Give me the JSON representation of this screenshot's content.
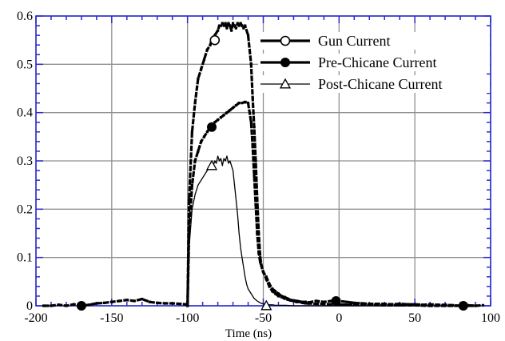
{
  "chart_data": {
    "type": "line",
    "title": "",
    "xlabel": "Time (ns)",
    "ylabel": "",
    "xlim": [
      -200,
      100
    ],
    "ylim": [
      0,
      0.6
    ],
    "x_ticks": [
      -200,
      -150,
      -100,
      -50,
      0,
      50,
      100
    ],
    "x_tick_labels": [
      "-200",
      "-150",
      "-100",
      "-50",
      "0",
      "50",
      "100"
    ],
    "y_ticks": [
      0,
      0.1,
      0.2,
      0.3,
      0.4,
      0.5,
      0.6
    ],
    "y_tick_labels": [
      "0",
      "0.1",
      "0.2",
      "0.3",
      "0.4",
      "0.5",
      "0.6"
    ],
    "grid": true,
    "legend_position": "top-right",
    "series": [
      {
        "name": "Gun Current",
        "marker": "open-circle",
        "line_weight": "heavy",
        "marker_points": [
          [
            -82,
            0.55
          ]
        ],
        "x": [
          -100,
          -99,
          -97,
          -95,
          -93,
          -91,
          -89,
          -87,
          -85,
          -84,
          -83,
          -82,
          -80,
          -79,
          -78,
          -77,
          -76,
          -75,
          -74,
          -73,
          -72,
          -71,
          -70,
          -69,
          -68,
          -67,
          -66,
          -65,
          -64,
          -63,
          -62,
          -60,
          -58,
          -57,
          -56,
          -55,
          -54,
          -53,
          -52,
          -51,
          -50,
          -48,
          -46,
          -44,
          -42,
          -40,
          -38,
          -36,
          -34,
          -32,
          -30,
          -28,
          -26,
          -24,
          -22,
          -20,
          -15,
          -10,
          -5,
          0,
          5,
          10,
          20,
          30,
          40,
          50,
          60,
          70,
          80,
          90
        ],
        "y": [
          0.0,
          0.22,
          0.36,
          0.42,
          0.47,
          0.49,
          0.51,
          0.53,
          0.54,
          0.55,
          0.55,
          0.56,
          0.57,
          0.58,
          0.58,
          0.585,
          0.58,
          0.585,
          0.575,
          0.585,
          0.58,
          0.57,
          0.585,
          0.58,
          0.575,
          0.585,
          0.58,
          0.585,
          0.58,
          0.575,
          0.58,
          0.56,
          0.5,
          0.43,
          0.37,
          0.3,
          0.22,
          0.15,
          0.1,
          0.08,
          0.07,
          0.055,
          0.04,
          0.03,
          0.025,
          0.02,
          0.018,
          0.015,
          0.013,
          0.011,
          0.01,
          0.008,
          0.008,
          0.006,
          0.005,
          0.005,
          0.004,
          0.004,
          0.003,
          0.003,
          0.002,
          0.002,
          0.002,
          0.001,
          0.001,
          0.001,
          0.0,
          0.0,
          0.0,
          0.0
        ]
      },
      {
        "name": "Pre-Chicane Current",
        "marker": "filled-circle",
        "line_weight": "heavy",
        "marker_points": [
          [
            -170,
            0.0
          ],
          [
            -84,
            0.37
          ],
          [
            -2,
            0.01
          ],
          [
            82,
            0.0
          ]
        ],
        "x": [
          -195,
          -190,
          -185,
          -180,
          -175,
          -170,
          -165,
          -160,
          -155,
          -150,
          -145,
          -140,
          -135,
          -130,
          -125,
          -120,
          -115,
          -110,
          -105,
          -101,
          -100,
          -99,
          -97,
          -95,
          -93,
          -91,
          -89,
          -87,
          -85,
          -84,
          -83,
          -82,
          -80,
          -78,
          -76,
          -74,
          -72,
          -70,
          -68,
          -66,
          -64,
          -62,
          -60,
          -58,
          -57,
          -56,
          -55,
          -54,
          -53,
          -52,
          -51,
          -50,
          -48,
          -46,
          -44,
          -42,
          -40,
          -38,
          -36,
          -34,
          -32,
          -30,
          -28,
          -26,
          -24,
          -22,
          -20,
          -15,
          -10,
          -5,
          0,
          5,
          10,
          15,
          20,
          25,
          30,
          35,
          40,
          45,
          50,
          55,
          60,
          65,
          70,
          75,
          80,
          85,
          90,
          95
        ],
        "y": [
          0.0,
          0.0,
          0.002,
          0.0,
          0.003,
          0.0,
          0.002,
          0.005,
          0.006,
          0.008,
          0.01,
          0.012,
          0.01,
          0.014,
          0.008,
          0.006,
          0.005,
          0.005,
          0.004,
          0.003,
          0.0,
          0.15,
          0.25,
          0.3,
          0.32,
          0.34,
          0.35,
          0.36,
          0.37,
          0.37,
          0.375,
          0.38,
          0.385,
          0.39,
          0.395,
          0.4,
          0.405,
          0.41,
          0.415,
          0.42,
          0.42,
          0.422,
          0.42,
          0.38,
          0.33,
          0.27,
          0.21,
          0.15,
          0.11,
          0.09,
          0.08,
          0.07,
          0.06,
          0.045,
          0.035,
          0.03,
          0.025,
          0.02,
          0.018,
          0.015,
          0.012,
          0.011,
          0.01,
          0.009,
          0.008,
          0.008,
          0.007,
          0.01,
          0.008,
          0.01,
          0.01,
          0.008,
          0.006,
          0.005,
          0.004,
          0.004,
          0.004,
          0.003,
          0.004,
          0.003,
          0.003,
          0.002,
          0.003,
          0.002,
          0.002,
          0.001,
          0.0,
          0.001,
          0.0,
          0.001
        ]
      },
      {
        "name": "Post-Chicane Current",
        "marker": "open-triangle",
        "line_weight": "thin",
        "marker_points": [
          [
            -84,
            0.29
          ],
          [
            -48,
            0.0
          ]
        ],
        "x": [
          -100,
          -99,
          -97,
          -95,
          -93,
          -91,
          -89,
          -87,
          -85,
          -84,
          -83,
          -82,
          -81,
          -80,
          -79,
          -78,
          -77,
          -76,
          -75,
          -74,
          -73,
          -72,
          -71,
          -70,
          -69,
          -68,
          -67,
          -66,
          -65,
          -64,
          -63,
          -62,
          -61,
          -60,
          -58,
          -56,
          -54,
          -52,
          -50,
          -48,
          -46,
          -44,
          -42,
          -40,
          -35,
          -30,
          -25,
          -20,
          -10,
          0,
          10,
          20,
          30
        ],
        "y": [
          0.0,
          0.12,
          0.2,
          0.23,
          0.25,
          0.26,
          0.27,
          0.28,
          0.29,
          0.29,
          0.29,
          0.3,
          0.295,
          0.31,
          0.3,
          0.305,
          0.29,
          0.305,
          0.3,
          0.31,
          0.295,
          0.3,
          0.29,
          0.28,
          0.25,
          0.22,
          0.19,
          0.15,
          0.12,
          0.1,
          0.08,
          0.06,
          0.045,
          0.035,
          0.025,
          0.015,
          0.01,
          0.006,
          0.004,
          0.003,
          0.002,
          0.002,
          0.001,
          0.001,
          0.001,
          0.0,
          0.0,
          0.0,
          0.0,
          0.0,
          0.0,
          0.0,
          0.0
        ]
      }
    ]
  }
}
